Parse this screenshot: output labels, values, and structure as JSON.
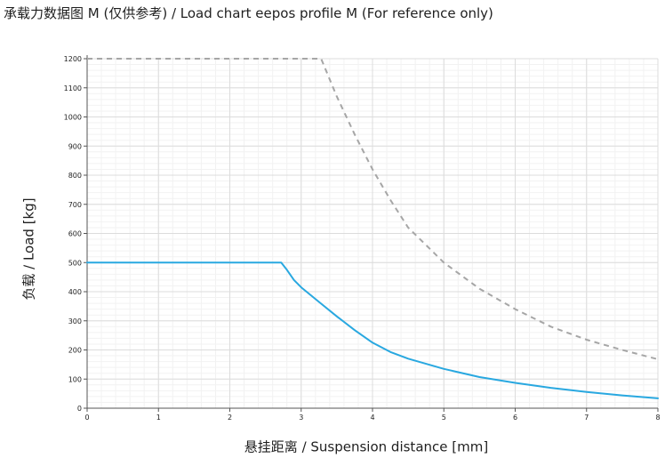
{
  "chart_data": {
    "type": "line",
    "title": "承载力数据图 M (仅供参考) / Load chart eepos profile M (For reference only)",
    "xlabel": "悬挂距离 / Suspension distance [mm]",
    "ylabel": "负载 / Load [kg]",
    "xlim": [
      0,
      8
    ],
    "ylim": [
      0,
      1200
    ],
    "x_ticks": [
      0,
      1,
      2,
      3,
      4,
      5,
      6,
      7,
      8
    ],
    "y_ticks": [
      0,
      100,
      200,
      300,
      400,
      500,
      600,
      700,
      800,
      900,
      1000,
      1100,
      1200
    ],
    "grid": true,
    "series": [
      {
        "style": "solid",
        "color": "#29a8e0",
        "x": [
          0,
          0.5,
          1,
          1.5,
          2,
          2.5,
          2.72,
          2.8,
          2.9,
          3.0,
          3.25,
          3.5,
          3.75,
          4.0,
          4.25,
          4.5,
          5.0,
          5.5,
          6.0,
          6.5,
          7.0,
          7.5,
          8.0
        ],
        "y": [
          500,
          500,
          500,
          500,
          500,
          500,
          500,
          475,
          440,
          415,
          365,
          315,
          268,
          225,
          193,
          170,
          135,
          107,
          87,
          70,
          56,
          44,
          34
        ]
      },
      {
        "style": "dashed",
        "color": "#a6a6a6",
        "x": [
          0,
          1,
          2,
          3,
          3.28,
          3.5,
          3.75,
          4.0,
          4.25,
          4.5,
          5.0,
          5.5,
          6.0,
          6.5,
          7.0,
          7.5,
          8.0
        ],
        "y": [
          1200,
          1200,
          1200,
          1200,
          1200,
          1070,
          940,
          820,
          715,
          620,
          500,
          410,
          340,
          280,
          235,
          200,
          168
        ]
      }
    ]
  }
}
